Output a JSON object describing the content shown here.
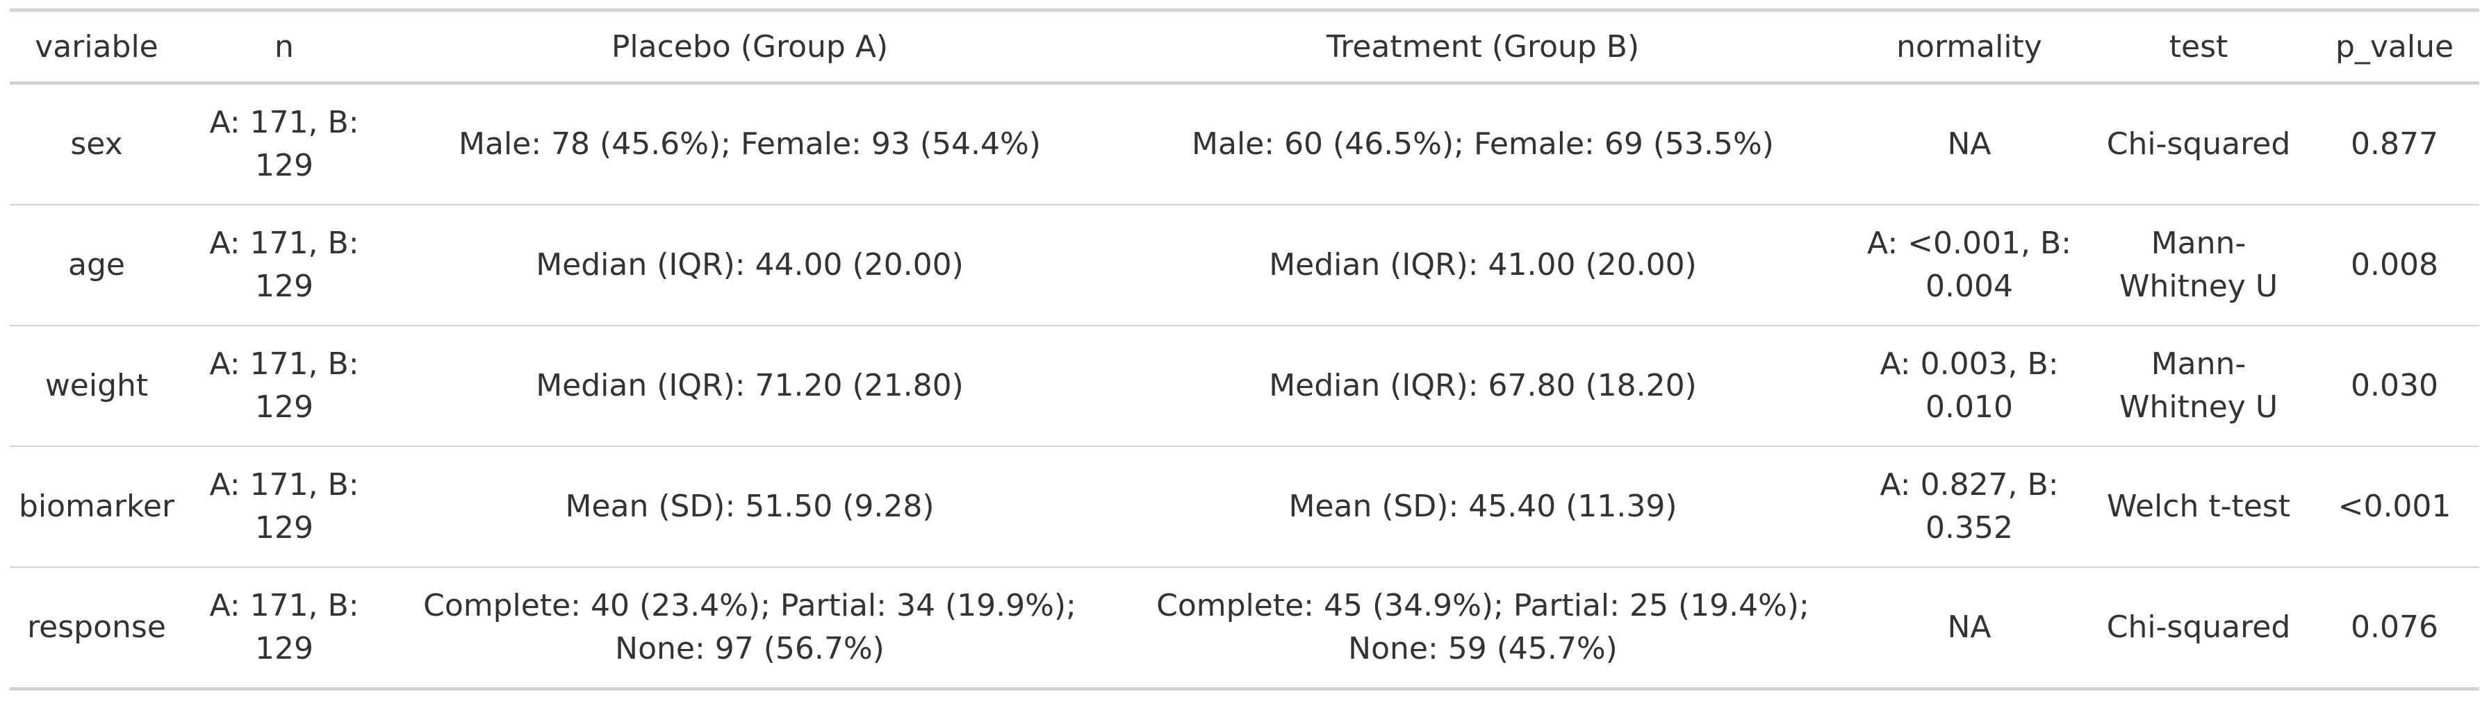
{
  "table": {
    "headers": [
      "variable",
      "n",
      "Placebo (Group A)",
      "Treatment (Group B)",
      "normality",
      "test",
      "p_value"
    ],
    "rows": [
      {
        "variable": "sex",
        "n": "A: 171, B: 129",
        "group_a": "Male: 78 (45.6%); Female: 93 (54.4%)",
        "group_b": "Male: 60 (46.5%); Female: 69 (53.5%)",
        "normality": "NA",
        "test": "Chi-squared",
        "p_value": "0.877"
      },
      {
        "variable": "age",
        "n": "A: 171, B: 129",
        "group_a": "Median (IQR): 44.00 (20.00)",
        "group_b": "Median (IQR): 41.00 (20.00)",
        "normality": "A: <0.001, B: 0.004",
        "test": "Mann-Whitney U",
        "p_value": "0.008"
      },
      {
        "variable": "weight",
        "n": "A: 171, B: 129",
        "group_a": "Median (IQR): 71.20 (21.80)",
        "group_b": "Median (IQR): 67.80 (18.20)",
        "normality": "A: 0.003, B: 0.010",
        "test": "Mann-Whitney U",
        "p_value": "0.030"
      },
      {
        "variable": "biomarker",
        "n": "A: 171, B: 129",
        "group_a": "Mean (SD): 51.50 (9.28)",
        "group_b": "Mean (SD): 45.40 (11.39)",
        "normality": "A: 0.827, B: 0.352",
        "test": "Welch t-test",
        "p_value": "<0.001"
      },
      {
        "variable": "response",
        "n": "A: 171, B: 129",
        "group_a": "Complete: 40 (23.4%); Partial: 34 (19.9%); None: 97 (56.7%)",
        "group_b": "Complete: 45 (34.9%); Partial: 25 (19.4%); None: 59 (45.7%)",
        "normality": "NA",
        "test": "Chi-squared",
        "p_value": "0.076"
      }
    ]
  }
}
